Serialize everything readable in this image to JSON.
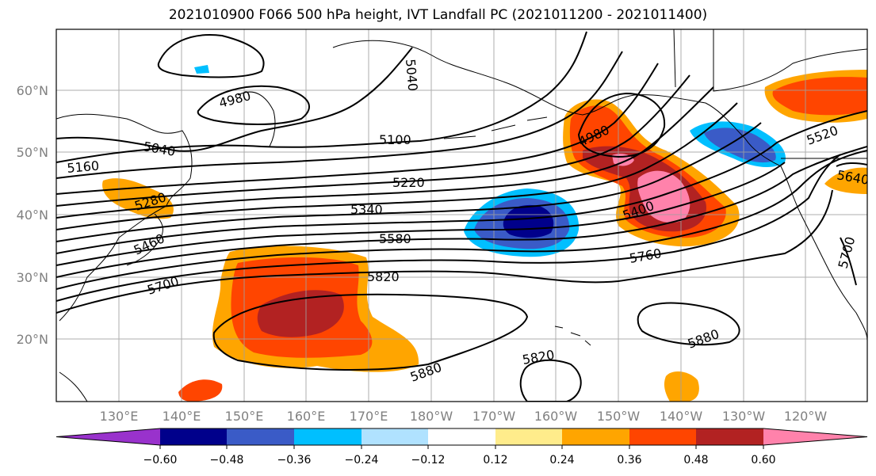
{
  "title": "2021010900 F066 500 hPa height, IVT Landfall PC (2021011200 - 2021011400)",
  "lat_labels": [
    "60°N",
    "50°N",
    "40°N",
    "30°N",
    "20°N"
  ],
  "lon_labels": [
    "130°E",
    "140°E",
    "150°E",
    "160°E",
    "170°E",
    "180°W",
    "170°W",
    "160°W",
    "150°W",
    "140°W",
    "130°W",
    "120°W"
  ],
  "contour_labels": [
    "4980",
    "5040",
    "5160",
    "5280",
    "5460",
    "5700",
    "5820",
    "5880",
    "5100",
    "5220",
    "5340",
    "5580",
    "5820",
    "5880",
    "4980",
    "5400",
    "5760",
    "5520",
    "5640",
    "5700",
    "5040"
  ],
  "colorbar": {
    "ticks": [
      "−0.60",
      "−0.48",
      "−0.36",
      "−0.24",
      "−0.12",
      "0.12",
      "0.24",
      "0.36",
      "0.48",
      "0.60"
    ],
    "colors": [
      "#9932cc",
      "#00008b",
      "#3a5bc7",
      "#00bfff",
      "#b0e2ff",
      "#ffffff",
      "#ffec8b",
      "#ffa500",
      "#ff4500",
      "#b22222",
      "#ff82ab"
    ]
  },
  "colors": {
    "contour": "#000000",
    "grid": "#a0a0a0",
    "axis_label": "#808080"
  }
}
